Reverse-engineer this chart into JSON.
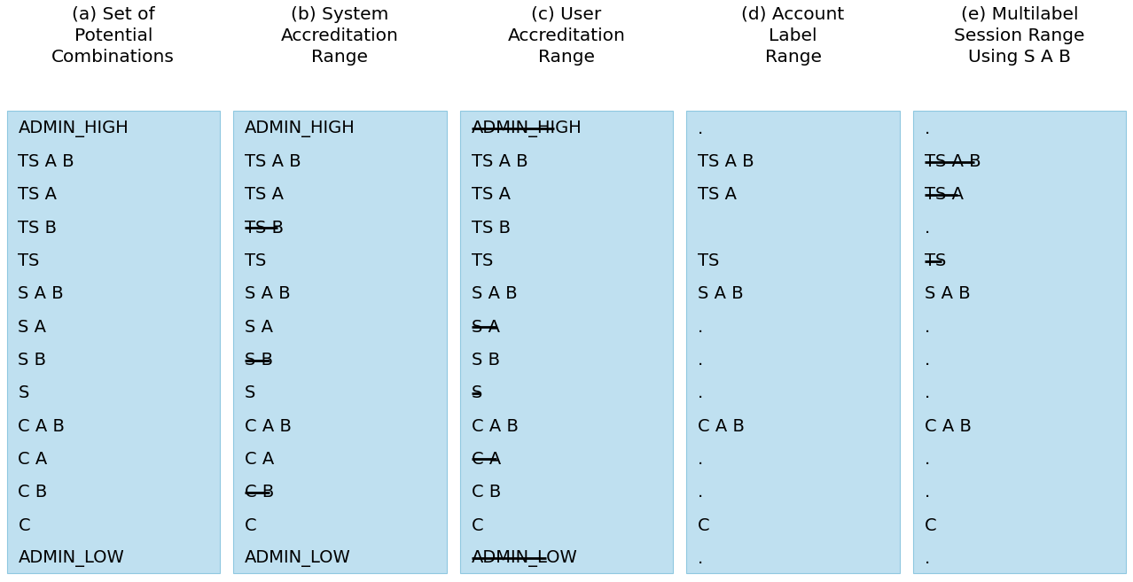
{
  "background_color": "#ffffff",
  "panel_color": "#bfe0f0",
  "text_color": "#000000",
  "fig_width": 12.78,
  "fig_height": 6.57,
  "columns": [
    {
      "id": "a",
      "title": "(a) Set of\nPotential\nCombinations",
      "has_box": true,
      "items": [
        {
          "text": "ADMIN_HIGH",
          "strikethrough": false
        },
        {
          "text": "TS A B",
          "strikethrough": false
        },
        {
          "text": "TS A",
          "strikethrough": false
        },
        {
          "text": "TS B",
          "strikethrough": false
        },
        {
          "text": "TS",
          "strikethrough": false
        },
        {
          "text": "S A B",
          "strikethrough": false
        },
        {
          "text": "S A",
          "strikethrough": false
        },
        {
          "text": "S B",
          "strikethrough": false
        },
        {
          "text": "S",
          "strikethrough": false
        },
        {
          "text": "C A B",
          "strikethrough": false
        },
        {
          "text": "C A",
          "strikethrough": false
        },
        {
          "text": "C B",
          "strikethrough": false
        },
        {
          "text": "C",
          "strikethrough": false
        },
        {
          "text": "ADMIN_LOW",
          "strikethrough": false
        }
      ]
    },
    {
      "id": "b",
      "title": "(b) System\nAccreditation\nRange",
      "has_box": true,
      "items": [
        {
          "text": "ADMIN_HIGH",
          "strikethrough": false
        },
        {
          "text": "TS A B",
          "strikethrough": false
        },
        {
          "text": "TS A",
          "strikethrough": false
        },
        {
          "text": "TS B",
          "strikethrough": true
        },
        {
          "text": "TS",
          "strikethrough": false
        },
        {
          "text": "S A B",
          "strikethrough": false
        },
        {
          "text": "S A",
          "strikethrough": false
        },
        {
          "text": "S B",
          "strikethrough": true
        },
        {
          "text": "S",
          "strikethrough": false
        },
        {
          "text": "C A B",
          "strikethrough": false
        },
        {
          "text": "C A",
          "strikethrough": false
        },
        {
          "text": "C B",
          "strikethrough": true
        },
        {
          "text": "C",
          "strikethrough": false
        },
        {
          "text": "ADMIN_LOW",
          "strikethrough": false
        }
      ]
    },
    {
      "id": "c",
      "title": "(c) User\nAccreditation\nRange",
      "has_box": true,
      "items": [
        {
          "text": "ADMIN_HIGH",
          "strikethrough": true
        },
        {
          "text": "TS A B",
          "strikethrough": false
        },
        {
          "text": "TS A",
          "strikethrough": false
        },
        {
          "text": "TS B",
          "strikethrough": false
        },
        {
          "text": "TS",
          "strikethrough": false
        },
        {
          "text": "S A B",
          "strikethrough": false
        },
        {
          "text": "S A",
          "strikethrough": true
        },
        {
          "text": "S B",
          "strikethrough": false
        },
        {
          "text": "S",
          "strikethrough": true
        },
        {
          "text": "C A B",
          "strikethrough": false
        },
        {
          "text": "C A",
          "strikethrough": true
        },
        {
          "text": "C B",
          "strikethrough": false
        },
        {
          "text": "C",
          "strikethrough": false
        },
        {
          "text": "ADMIN_LOW",
          "strikethrough": true
        }
      ]
    },
    {
      "id": "d",
      "title": "(d) Account\nLabel\nRange",
      "has_box": true,
      "items": [
        {
          "text": ".",
          "strikethrough": false
        },
        {
          "text": "TS A B",
          "strikethrough": false
        },
        {
          "text": "TS A",
          "strikethrough": false
        },
        {
          "text": " ",
          "strikethrough": false
        },
        {
          "text": "TS",
          "strikethrough": false
        },
        {
          "text": "S A B",
          "strikethrough": false
        },
        {
          "text": ".",
          "strikethrough": false
        },
        {
          "text": ".",
          "strikethrough": false
        },
        {
          "text": ".",
          "strikethrough": false
        },
        {
          "text": "C A B",
          "strikethrough": false
        },
        {
          "text": ".",
          "strikethrough": false
        },
        {
          "text": ".",
          "strikethrough": false
        },
        {
          "text": "C",
          "strikethrough": false
        },
        {
          "text": ".",
          "strikethrough": false
        }
      ]
    },
    {
      "id": "e",
      "title": "(e) Multilabel\nSession Range\nUsing S A B",
      "has_box": true,
      "items": [
        {
          "text": ".",
          "strikethrough": false
        },
        {
          "text": "TS A B",
          "strikethrough": true
        },
        {
          "text": "TS A",
          "strikethrough": true
        },
        {
          "text": ".",
          "strikethrough": false
        },
        {
          "text": "TS",
          "strikethrough": true
        },
        {
          "text": "S A B",
          "strikethrough": false
        },
        {
          "text": ".",
          "strikethrough": false
        },
        {
          "text": ".",
          "strikethrough": false
        },
        {
          "text": ".",
          "strikethrough": false
        },
        {
          "text": "C A B",
          "strikethrough": false
        },
        {
          "text": ".",
          "strikethrough": false
        },
        {
          "text": ".",
          "strikethrough": false
        },
        {
          "text": "C",
          "strikethrough": false
        },
        {
          "text": ".",
          "strikethrough": false
        }
      ]
    }
  ],
  "title_fontsize": 14.5,
  "item_fontsize": 14.0,
  "font_family": "DejaVu Sans"
}
